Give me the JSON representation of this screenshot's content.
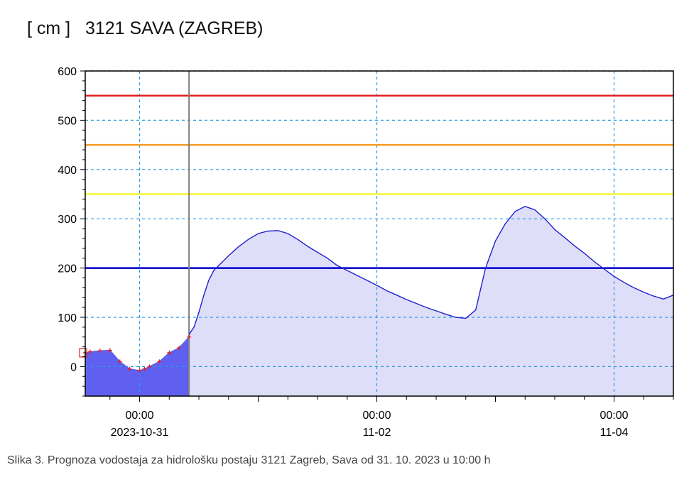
{
  "title": "[ cm ]   3121 SAVA (ZAGREB)",
  "caption": "Slika 3. Prognoza vodostaja za hidrološku postaju 3121 Zagreb, Sava od 31. 10. 2023 u 10:00 h",
  "chart_data": {
    "type": "area",
    "unit": "cm",
    "x_unit": "hours since 2023-10-31 00:00",
    "xlim": [
      -11,
      108
    ],
    "ylim": [
      -60,
      600
    ],
    "y_ticks": [
      0,
      100,
      200,
      300,
      400,
      500,
      600
    ],
    "x_tick_labels": [
      {
        "x": 0,
        "time": "00:00",
        "date": "2023-10-31"
      },
      {
        "x": 48,
        "time": "00:00",
        "date": "11-02"
      },
      {
        "x": 96,
        "time": "00:00",
        "date": "11-04"
      }
    ],
    "x_gridlines": [
      0,
      48,
      96
    ],
    "grid": true,
    "forecast_start_x": 10,
    "thresholds": [
      {
        "value": 550,
        "color": "#e02020"
      },
      {
        "value": 450,
        "color": "#f59a23"
      },
      {
        "value": 350,
        "color": "#f5f530"
      },
      {
        "value": 200,
        "color": "#0000cc"
      }
    ],
    "observed": {
      "color": "#6060f0",
      "marker_color": "#e02020",
      "x": [
        -11,
        -10,
        -8,
        -6,
        -4,
        -2,
        0,
        1,
        2,
        4,
        6,
        8,
        10
      ],
      "y": [
        28,
        30,
        32,
        33,
        10,
        -5,
        -8,
        -5,
        0,
        10,
        28,
        38,
        60
      ]
    },
    "forecast": {
      "color": "#2020d0",
      "fill": "#dedef8",
      "x": [
        10,
        11,
        12,
        13,
        14,
        15,
        16,
        18,
        20,
        22,
        24,
        26,
        28,
        30,
        32,
        34,
        36,
        38,
        40,
        42,
        44,
        46,
        48,
        50,
        52,
        54,
        56,
        58,
        60,
        62,
        64,
        66,
        68,
        70,
        72,
        74,
        76,
        78,
        80,
        82,
        84,
        86,
        88,
        90,
        92,
        94,
        96,
        98,
        100,
        102,
        104,
        106,
        108
      ],
      "y": [
        65,
        80,
        110,
        145,
        175,
        195,
        205,
        225,
        243,
        258,
        270,
        275,
        276,
        270,
        258,
        244,
        232,
        220,
        205,
        195,
        185,
        175,
        165,
        154,
        145,
        136,
        128,
        120,
        113,
        106,
        100,
        98,
        115,
        200,
        255,
        290,
        315,
        325,
        318,
        300,
        278,
        262,
        245,
        230,
        213,
        198,
        183,
        171,
        160,
        151,
        143,
        137,
        145
      ]
    }
  }
}
